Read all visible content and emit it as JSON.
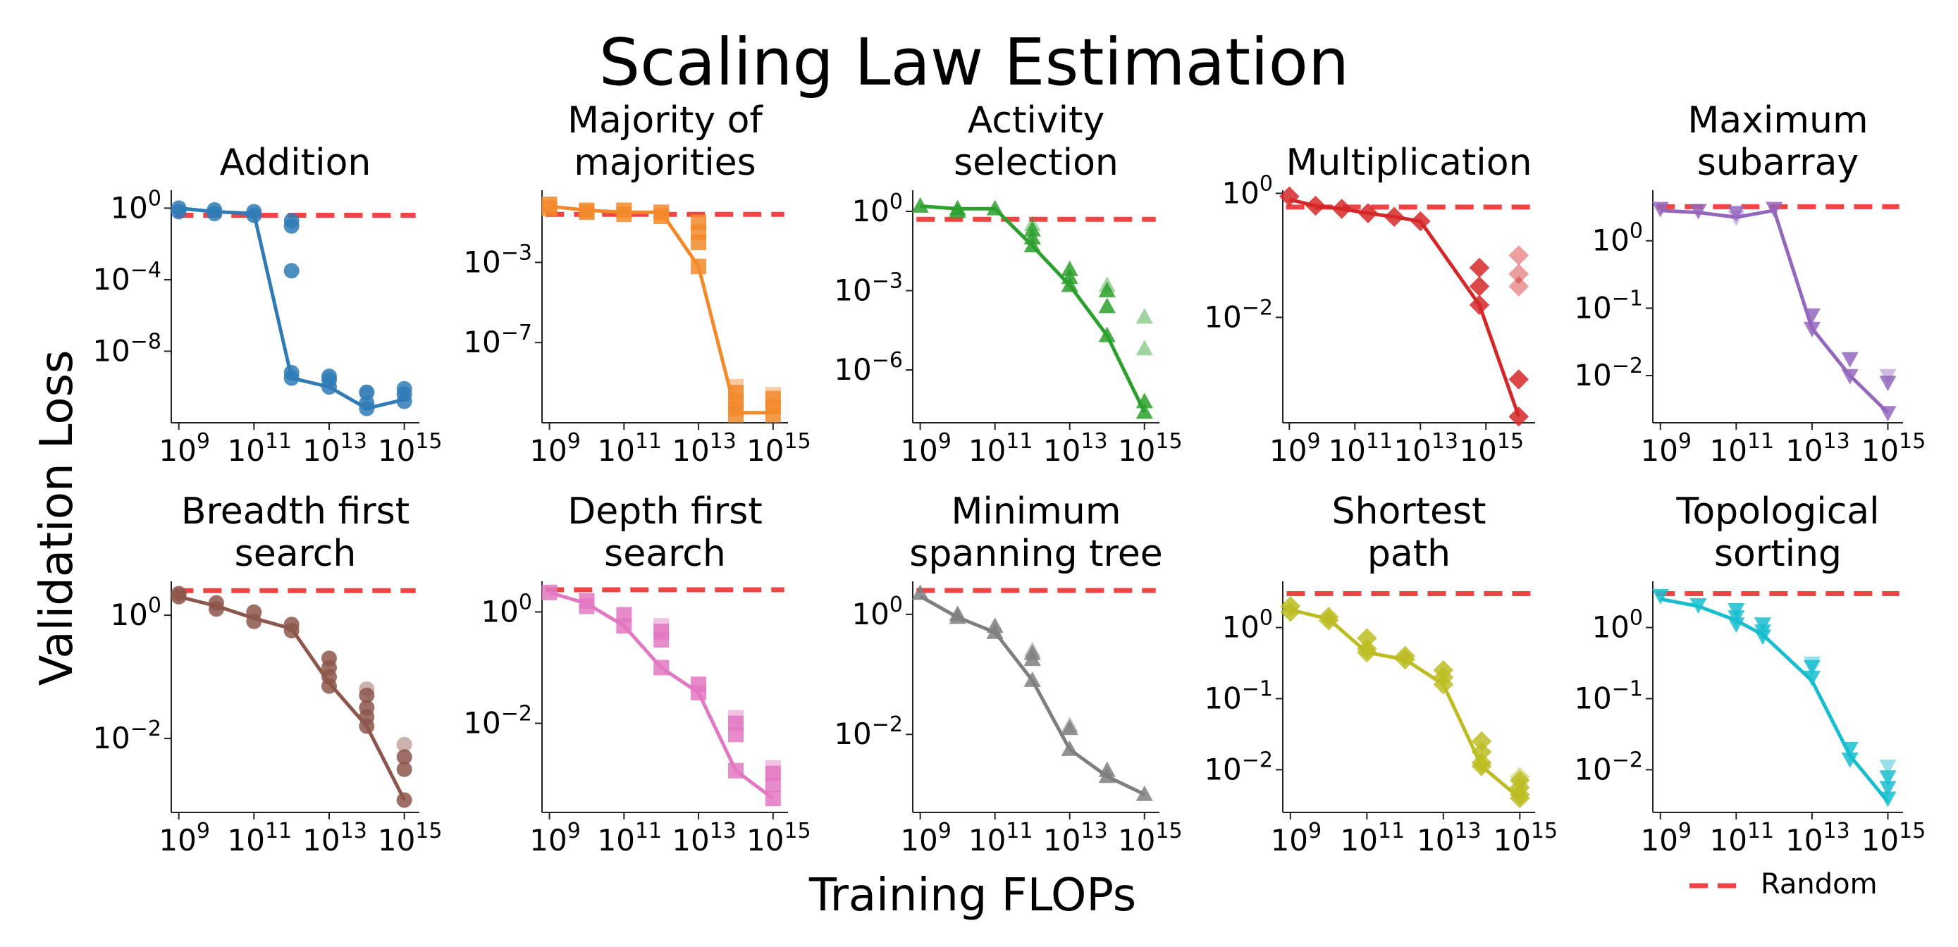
{
  "figure": {
    "title": "Scaling Law Estimation",
    "xlabel": "Training FLOPs",
    "ylabel": "Validation Loss",
    "legend": {
      "label": "Random",
      "color": "#ef4444",
      "style": "dashed",
      "placement": "bottom-right"
    }
  },
  "chart_data": [
    {
      "type": "line",
      "title_lines": [
        "Addition"
      ],
      "color": "#2f7bb6",
      "marker": "circle",
      "xscale": "log",
      "yscale": "log",
      "xlim_exp": [
        8.8,
        15.4
      ],
      "ylim_exp": [
        -12,
        1
      ],
      "xticks_exp": [
        9,
        11,
        13,
        15
      ],
      "yticks_exp": [
        0,
        -4,
        -8
      ],
      "random_loss": 0.4,
      "x_exp": [
        9,
        9.95,
        11,
        12,
        13,
        14,
        15
      ],
      "line_exp": [
        0,
        -0.2,
        -0.3,
        -9.5,
        -10,
        -11.2,
        -10.7
      ],
      "scatter": [
        [
          9,
          0
        ],
        [
          9,
          -0.2
        ],
        [
          9.95,
          -0.1
        ],
        [
          9.95,
          -0.3
        ],
        [
          11,
          -0.2
        ],
        [
          11,
          -0.4
        ],
        [
          12,
          -0.7
        ],
        [
          12,
          -1.0
        ],
        [
          12,
          -3.5
        ],
        [
          12,
          -9.2
        ],
        [
          12,
          -9.5
        ],
        [
          13,
          -9.4
        ],
        [
          13,
          -9.6
        ],
        [
          13,
          -10.0
        ],
        [
          14,
          -10.3
        ],
        [
          14,
          -10.9
        ],
        [
          14,
          -11.2
        ],
        [
          15,
          -10.1
        ],
        [
          15,
          -10.4
        ],
        [
          15,
          -10.8
        ]
      ],
      "scatter_faded": [
        [
          14,
          -10.3
        ]
      ]
    },
    {
      "type": "line",
      "title_lines": [
        "Majority of",
        "majorities"
      ],
      "color": "#f28a2b",
      "marker": "square",
      "xscale": "log",
      "yscale": "log",
      "xlim_exp": [
        8.8,
        15.4
      ],
      "ylim_exp": [
        -11,
        0.6
      ],
      "xticks_exp": [
        9,
        11,
        13,
        15
      ],
      "yticks_exp": [
        -3,
        -7
      ],
      "random_loss": 0.25,
      "x_exp": [
        9,
        10,
        11,
        12,
        13,
        14,
        15
      ],
      "line_exp": [
        -0.2,
        -0.4,
        -0.5,
        -0.5,
        -3.2,
        -10.5,
        -10.5
      ],
      "scatter": [
        [
          9,
          -0.1
        ],
        [
          9,
          -0.3
        ],
        [
          10,
          -0.4
        ],
        [
          10,
          -0.5
        ],
        [
          11,
          -0.4
        ],
        [
          11,
          -0.6
        ],
        [
          12,
          -0.5
        ],
        [
          12,
          -0.7
        ],
        [
          13,
          -1.0
        ],
        [
          13,
          -1.5
        ],
        [
          13,
          -2.0
        ],
        [
          13,
          -3.2
        ],
        [
          14,
          -9.5
        ],
        [
          14,
          -9.9
        ],
        [
          14,
          -10.3
        ],
        [
          14,
          -10.6
        ],
        [
          15,
          -9.8
        ],
        [
          15,
          -10.2
        ],
        [
          15,
          -10.6
        ]
      ],
      "scatter_faded": [
        [
          14,
          -9.2
        ],
        [
          15,
          -9.6
        ]
      ]
    },
    {
      "type": "line",
      "title_lines": [
        "Activity",
        "selection"
      ],
      "color": "#2ca02c",
      "marker": "triangle-up",
      "xscale": "log",
      "yscale": "log",
      "xlim_exp": [
        8.8,
        15.4
      ],
      "ylim_exp": [
        -8,
        0.8
      ],
      "xticks_exp": [
        9,
        11,
        13,
        15
      ],
      "yticks_exp": [
        0,
        -3,
        -6
      ],
      "random_loss": 0.5,
      "x_exp": [
        9,
        10,
        11,
        12,
        13,
        14,
        15
      ],
      "line_exp": [
        0.2,
        0.1,
        0.1,
        -1.3,
        -2.8,
        -4.7,
        -7.6
      ],
      "scatter": [
        [
          9,
          0.2
        ],
        [
          10,
          0.1
        ],
        [
          10,
          0
        ],
        [
          11,
          0.1
        ],
        [
          12,
          -0.7
        ],
        [
          12,
          -1.0
        ],
        [
          12,
          -1.3
        ],
        [
          13,
          -2.2
        ],
        [
          13,
          -2.5
        ],
        [
          13,
          -2.8
        ],
        [
          14,
          -3.0
        ],
        [
          14,
          -3.6
        ],
        [
          14,
          -4.7
        ],
        [
          15,
          -7.2
        ],
        [
          15,
          -7.6
        ]
      ],
      "scatter_faded": [
        [
          12,
          -0.5
        ],
        [
          14,
          -2.8
        ],
        [
          15,
          -4.0
        ],
        [
          15,
          -5.2
        ]
      ]
    },
    {
      "type": "line",
      "title_lines": [
        "Multiplication"
      ],
      "color": "#d62728",
      "marker": "diamond",
      "xscale": "log",
      "yscale": "log",
      "xlim_exp": [
        8.8,
        16.5
      ],
      "ylim_exp": [
        -3.7,
        0.05
      ],
      "xticks_exp": [
        9,
        11,
        13,
        15
      ],
      "yticks_exp": [
        0,
        -2
      ],
      "random_loss": 0.6,
      "x_exp": [
        9,
        9.8,
        10.6,
        11.4,
        12.2,
        13,
        14.8,
        16
      ],
      "line_exp": [
        -0.1,
        -0.2,
        -0.25,
        -0.32,
        -0.38,
        -0.45,
        -1.8,
        -3.6
      ],
      "scatter": [
        [
          9,
          -0.05
        ],
        [
          9.8,
          -0.2
        ],
        [
          10.6,
          -0.25
        ],
        [
          11.4,
          -0.32
        ],
        [
          12.2,
          -0.38
        ],
        [
          13,
          -0.45
        ],
        [
          14.8,
          -1.2
        ],
        [
          14.8,
          -1.5
        ],
        [
          14.8,
          -1.8
        ],
        [
          16,
          -3.0
        ],
        [
          16,
          -3.6
        ]
      ],
      "scatter_faded": [
        [
          16,
          -1.0
        ],
        [
          16,
          -1.3
        ],
        [
          16,
          -1.5
        ]
      ]
    },
    {
      "type": "line",
      "title_lines": [
        "Maximum",
        "subarray"
      ],
      "color": "#9467bd",
      "marker": "triangle-down",
      "xscale": "log",
      "yscale": "log",
      "xlim_exp": [
        8.8,
        15.4
      ],
      "ylim_exp": [
        -2.7,
        0.75
      ],
      "xticks_exp": [
        9,
        11,
        13,
        15
      ],
      "yticks_exp": [
        0,
        -1,
        -2
      ],
      "random_loss": 3.2,
      "x_exp": [
        9,
        10,
        11,
        12,
        13,
        14,
        15
      ],
      "line_exp": [
        0.45,
        0.42,
        0.35,
        0.45,
        -1.3,
        -2.0,
        -2.55
      ],
      "scatter": [
        [
          9,
          0.48
        ],
        [
          10,
          0.45
        ],
        [
          11,
          0.42
        ],
        [
          12,
          0.48
        ],
        [
          13,
          -1.1
        ],
        [
          13,
          -1.3
        ],
        [
          14,
          -1.75
        ],
        [
          14,
          -2.0
        ],
        [
          15,
          -2.1
        ],
        [
          15,
          -2.55
        ]
      ],
      "scatter_faded": [
        [
          11,
          0.35
        ],
        [
          15,
          -2.0
        ]
      ]
    },
    {
      "type": "line",
      "title_lines": [
        "Breadth first",
        "search"
      ],
      "color": "#8c564b",
      "marker": "circle",
      "xscale": "log",
      "yscale": "log",
      "xlim_exp": [
        8.8,
        15.4
      ],
      "ylim_exp": [
        -3.2,
        0.55
      ],
      "xticks_exp": [
        9,
        11,
        13,
        15
      ],
      "yticks_exp": [
        0,
        -2
      ],
      "random_loss": 2.5,
      "x_exp": [
        9,
        10,
        11,
        12,
        13,
        14,
        15
      ],
      "line_exp": [
        0.3,
        0.15,
        -0.05,
        -0.22,
        -1.1,
        -1.8,
        -3.0
      ],
      "scatter": [
        [
          9,
          0.35
        ],
        [
          9,
          0.3
        ],
        [
          10,
          0.2
        ],
        [
          10,
          0.1
        ],
        [
          11,
          0.05
        ],
        [
          11,
          -0.1
        ],
        [
          12,
          -0.15
        ],
        [
          12,
          -0.25
        ],
        [
          13,
          -0.7
        ],
        [
          13,
          -0.85
        ],
        [
          13,
          -1.0
        ],
        [
          13,
          -1.15
        ],
        [
          14,
          -1.3
        ],
        [
          14,
          -1.5
        ],
        [
          14,
          -1.65
        ],
        [
          14,
          -1.8
        ],
        [
          15,
          -2.3
        ],
        [
          15,
          -2.5
        ],
        [
          15,
          -3.0
        ]
      ],
      "scatter_faded": [
        [
          14,
          -1.2
        ],
        [
          15,
          -2.1
        ]
      ]
    },
    {
      "type": "line",
      "title_lines": [
        "Depth first",
        "search"
      ],
      "color": "#e377c2",
      "marker": "square",
      "xscale": "log",
      "yscale": "log",
      "xlim_exp": [
        8.8,
        15.4
      ],
      "ylim_exp": [
        -3.6,
        0.55
      ],
      "xticks_exp": [
        9,
        11,
        13,
        15
      ],
      "yticks_exp": [
        0,
        -2
      ],
      "random_loss": 2.5,
      "x_exp": [
        9,
        10,
        11,
        12,
        13,
        14,
        15
      ],
      "line_exp": [
        0.35,
        0.15,
        -0.25,
        -1.0,
        -1.45,
        -2.85,
        -3.35
      ],
      "scatter": [
        [
          9,
          0.35
        ],
        [
          10,
          0.2
        ],
        [
          10,
          0.1
        ],
        [
          11,
          -0.05
        ],
        [
          11,
          -0.25
        ],
        [
          12,
          -0.35
        ],
        [
          12,
          -0.5
        ],
        [
          12,
          -1.0
        ],
        [
          13,
          -1.3
        ],
        [
          13,
          -1.45
        ],
        [
          14,
          -2.0
        ],
        [
          14,
          -2.2
        ],
        [
          14,
          -2.85
        ],
        [
          15,
          -2.9
        ],
        [
          15,
          -3.1
        ],
        [
          15,
          -3.35
        ]
      ],
      "scatter_faded": [
        [
          12,
          -0.25
        ],
        [
          14,
          -1.9
        ],
        [
          15,
          -2.8
        ]
      ]
    },
    {
      "type": "line",
      "title_lines": [
        "Minimum",
        "spanning tree"
      ],
      "color": "#7f7f7f",
      "marker": "triangle-up",
      "xscale": "log",
      "yscale": "log",
      "xlim_exp": [
        8.8,
        15.4
      ],
      "ylim_exp": [
        -3.3,
        0.55
      ],
      "xticks_exp": [
        9,
        11,
        13,
        15
      ],
      "yticks_exp": [
        0,
        -2
      ],
      "random_loss": 2.5,
      "x_exp": [
        9,
        10,
        11,
        12,
        13,
        14,
        15
      ],
      "line_exp": [
        0.3,
        -0.05,
        -0.3,
        -1.1,
        -2.25,
        -2.7,
        -3.0
      ],
      "scatter": [
        [
          9,
          0.35
        ],
        [
          10,
          0.0
        ],
        [
          10,
          -0.05
        ],
        [
          11,
          -0.2
        ],
        [
          11,
          -0.3
        ],
        [
          12,
          -0.65
        ],
        [
          12,
          -0.75
        ],
        [
          12,
          -1.1
        ],
        [
          13,
          -1.9
        ],
        [
          13,
          -2.25
        ],
        [
          14,
          -2.6
        ],
        [
          14,
          -2.7
        ],
        [
          15,
          -3.0
        ]
      ],
      "scatter_faded": [
        [
          12,
          -0.6
        ],
        [
          13,
          -1.85
        ]
      ]
    },
    {
      "type": "line",
      "title_lines": [
        "Shortest",
        "path"
      ],
      "color": "#bcbd22",
      "marker": "diamond",
      "xscale": "log",
      "yscale": "log",
      "xlim_exp": [
        8.8,
        15.4
      ],
      "ylim_exp": [
        -2.6,
        0.65
      ],
      "xticks_exp": [
        9,
        11,
        13,
        15
      ],
      "yticks_exp": [
        0,
        -1,
        -2
      ],
      "random_loss": 3.0,
      "x_exp": [
        9,
        10,
        11,
        12,
        13,
        14,
        15
      ],
      "line_exp": [
        0.25,
        0.12,
        -0.35,
        -0.45,
        -0.8,
        -1.95,
        -2.4
      ],
      "scatter": [
        [
          9,
          0.3
        ],
        [
          9,
          0.22
        ],
        [
          10,
          0.15
        ],
        [
          10,
          0.1
        ],
        [
          11,
          -0.15
        ],
        [
          11,
          -0.3
        ],
        [
          11,
          -0.35
        ],
        [
          12,
          -0.4
        ],
        [
          12,
          -0.45
        ],
        [
          13,
          -0.6
        ],
        [
          13,
          -0.7
        ],
        [
          13,
          -0.8
        ],
        [
          14,
          -1.6
        ],
        [
          14,
          -1.75
        ],
        [
          14,
          -1.9
        ],
        [
          14,
          -1.95
        ],
        [
          15,
          -2.15
        ],
        [
          15,
          -2.25
        ],
        [
          15,
          -2.35
        ],
        [
          15,
          -2.4
        ]
      ],
      "scatter_faded": [
        [
          15,
          -2.1
        ]
      ]
    },
    {
      "type": "line",
      "title_lines": [
        "Topological",
        "sorting"
      ],
      "color": "#17becf",
      "marker": "triangle-down",
      "xscale": "log",
      "yscale": "log",
      "xlim_exp": [
        8.8,
        15.4
      ],
      "ylim_exp": [
        -2.6,
        0.65
      ],
      "xticks_exp": [
        9,
        11,
        13,
        15
      ],
      "yticks_exp": [
        0,
        -1,
        -2
      ],
      "random_loss": 3.0,
      "x_exp": [
        9,
        10,
        11,
        11.7,
        13,
        14,
        15
      ],
      "line_exp": [
        0.4,
        0.3,
        0.1,
        -0.1,
        -0.75,
        -1.8,
        -2.45
      ],
      "scatter": [
        [
          9,
          0.45
        ],
        [
          10,
          0.32
        ],
        [
          11,
          0.25
        ],
        [
          11,
          0.15
        ],
        [
          11,
          0.05
        ],
        [
          11.7,
          0.05
        ],
        [
          11.7,
          -0.05
        ],
        [
          11.7,
          -0.12
        ],
        [
          13,
          -0.55
        ],
        [
          13,
          -0.7
        ],
        [
          14,
          -1.7
        ],
        [
          14,
          -1.85
        ],
        [
          15,
          -2.1
        ],
        [
          15,
          -2.25
        ],
        [
          15,
          -2.4
        ]
      ],
      "scatter_faded": [
        [
          13,
          -0.5
        ],
        [
          15,
          -1.95
        ]
      ]
    }
  ]
}
